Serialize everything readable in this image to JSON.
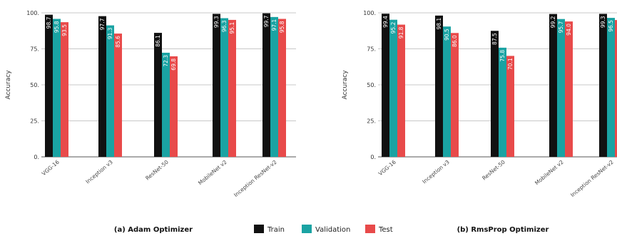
{
  "chart_data": [
    {
      "type": "bar",
      "caption": "(a) Adam Optimizer",
      "ylabel": "Accuracy",
      "ylim": [
        0,
        100
      ],
      "yticks": [
        0,
        25,
        50,
        75,
        100
      ],
      "ytick_labels": [
        "0.",
        "25.",
        "50.",
        "75.",
        "100."
      ],
      "grid": true,
      "categories": [
        "VGG-16",
        "Inception v3",
        "ResNet-50",
        "MobileNet v2",
        "Inception ResNet-v2"
      ],
      "series": [
        {
          "name": "Train",
          "values": [
            98.7,
            97.7,
            86.1,
            99.3,
            99.7
          ],
          "labels": [
            "98.7",
            "97.7",
            "86.1",
            "99.3",
            "99.7"
          ]
        },
        {
          "name": "Validation",
          "values": [
            95.8,
            91.3,
            72.3,
            96.3,
            97.1
          ],
          "labels": [
            "95.8",
            "91.3",
            "72.3",
            "96.3",
            "97.1"
          ]
        },
        {
          "name": "Test",
          "values": [
            93.5,
            85.6,
            69.8,
            95.1,
            95.8
          ],
          "labels": [
            "93.5",
            "85.6",
            "69.8",
            "95.1",
            "95.8"
          ]
        }
      ]
    },
    {
      "type": "bar",
      "caption": "(b) RmsProp Optimizer",
      "ylabel": "Accuracy",
      "ylim": [
        0,
        100
      ],
      "yticks": [
        0,
        25,
        50,
        75,
        100
      ],
      "ytick_labels": [
        "0.",
        "25.",
        "50.",
        "75.",
        "100."
      ],
      "grid": true,
      "categories": [
        "VGG-16",
        "Inception v3",
        "ResNet-50",
        "MobileNet v2",
        "Inception ResNet-v2"
      ],
      "series": [
        {
          "name": "Train",
          "values": [
            99.4,
            98.1,
            87.5,
            99.2,
            99.3
          ],
          "labels": [
            "99.4",
            "98.1",
            "87.5",
            "99.2",
            "99.3"
          ]
        },
        {
          "name": "Validation",
          "values": [
            95.2,
            90.5,
            75.8,
            95.7,
            96.5
          ],
          "labels": [
            "95.2",
            "90.5",
            "75.8",
            "95.7",
            "96.5"
          ]
        },
        {
          "name": "Test",
          "values": [
            91.8,
            86.0,
            70.1,
            94.0,
            95.0
          ],
          "labels": [
            "91.8",
            "86.0",
            "70.1",
            "94.0",
            ""
          ]
        }
      ]
    }
  ],
  "legend": {
    "position": "bottom-center",
    "items": [
      "Train",
      "Validation",
      "Test"
    ]
  },
  "colors": {
    "train": "#111111",
    "validation": "#1aa3a3",
    "test": "#e84a4a",
    "grid": "#c8c8c8",
    "axis": "#555555"
  }
}
